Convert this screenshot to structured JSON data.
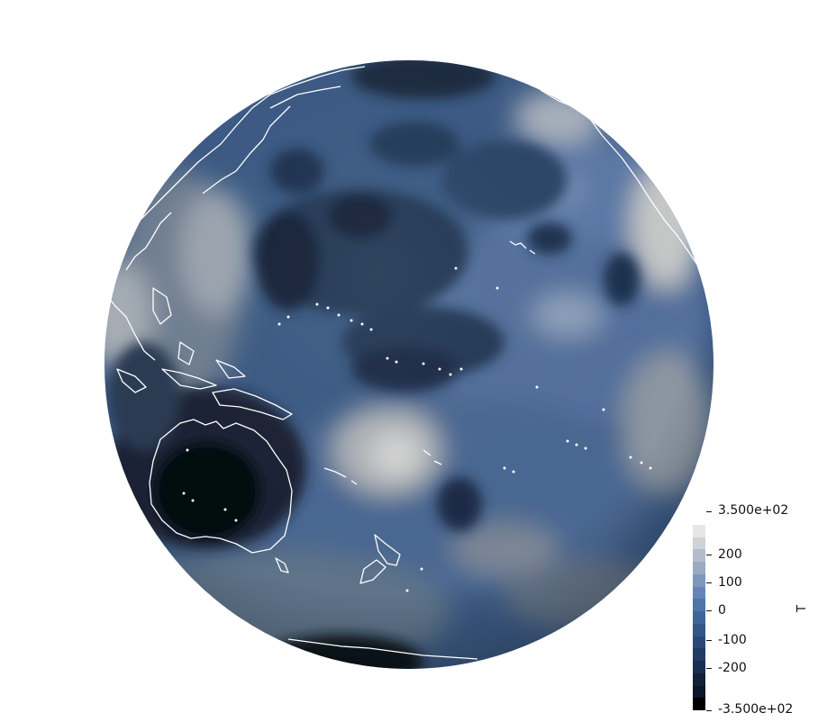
{
  "scalar_field": {
    "name": "T",
    "range": {
      "min": "-3.500e+02",
      "max": "3.500e+02"
    },
    "ticks": [
      "200",
      "100",
      "0",
      "-100",
      "-200"
    ],
    "band_colors": [
      "#e6e6e6",
      "#cfd2d6",
      "#b4bccb",
      "#9aa9c4",
      "#7f96bd",
      "#6685b6",
      "#4d74ab",
      "#3f659b",
      "#33568a",
      "#2a4877",
      "#223b63",
      "#1a2e4f",
      "#13223b",
      "#0b1627",
      "#000000"
    ]
  },
  "map": {
    "projection": "orthographic",
    "colormap": "sequential-blue",
    "coastline_color": "#ffffff",
    "colors": {
      "background": "#ffffff",
      "ocean_base": "#3b5a84",
      "dark_cell": "#132238",
      "light_cell": "#c8ccd2"
    }
  }
}
